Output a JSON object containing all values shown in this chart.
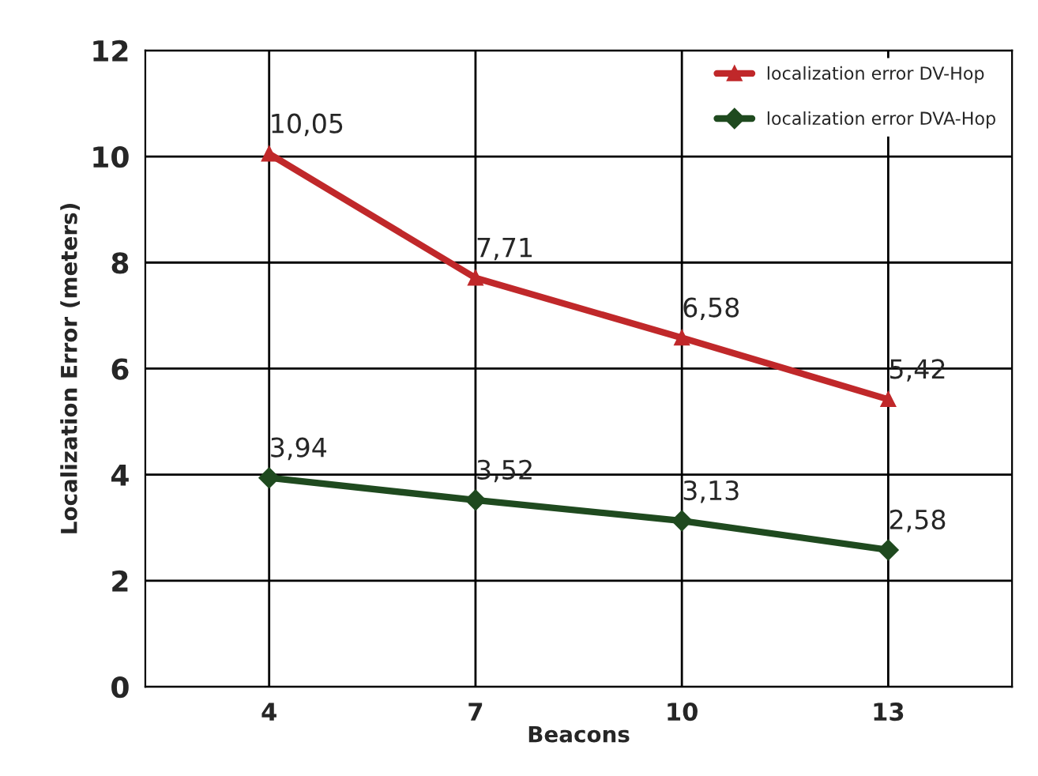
{
  "chart_data": {
    "type": "line",
    "xlabel": "Beacons",
    "ylabel": "Localization Error (meters)",
    "categories": [
      "4",
      "7",
      "10",
      "13"
    ],
    "series": [
      {
        "name": "localization error DV-Hop",
        "color": "#c0282a",
        "marker": "triangle",
        "values": [
          10.05,
          7.71,
          6.58,
          5.42
        ],
        "value_labels": [
          "10,05",
          "7,71",
          "6,58",
          "5,42"
        ]
      },
      {
        "name": "localization error DVA-Hop",
        "color": "#1f4a1f",
        "marker": "diamond",
        "values": [
          3.94,
          3.52,
          3.13,
          2.58
        ],
        "value_labels": [
          "3,94",
          "3,52",
          "3,13",
          "2,58"
        ]
      }
    ],
    "ylim": [
      0,
      12
    ],
    "yticks": [
      0,
      2,
      4,
      6,
      8,
      10,
      12
    ],
    "grid": true,
    "legend": "top right",
    "line_style": "solid"
  }
}
